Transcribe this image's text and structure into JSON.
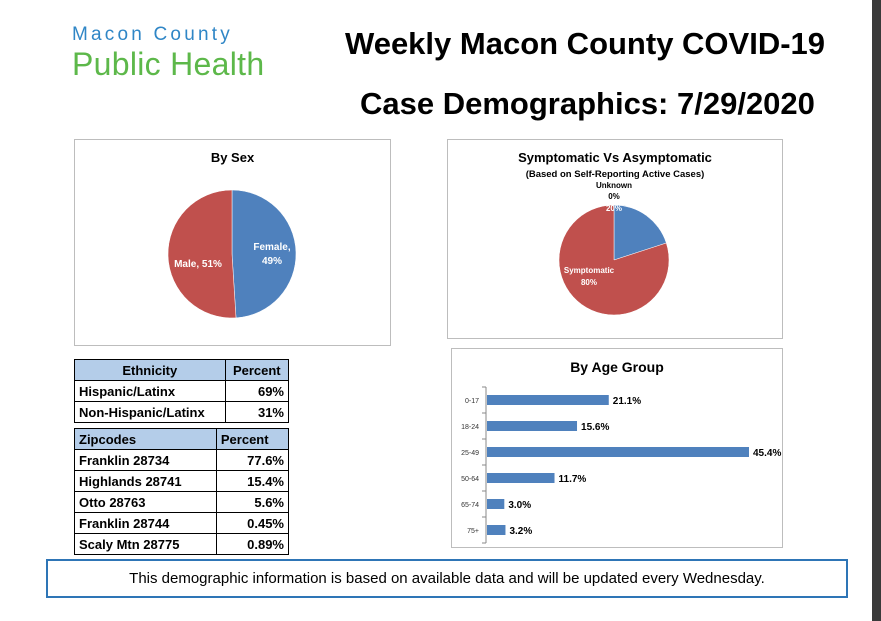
{
  "logo": {
    "line1": "Macon County",
    "line2": "Public Health"
  },
  "title": {
    "line1": "Weekly Macon County COVID-19",
    "line2": "Case Demographics: 7/29/2020"
  },
  "colors": {
    "blue": "#4f81bd",
    "red": "#c0504d",
    "header": "#b4cde9",
    "border": "#2e75b6"
  },
  "ethnicity_table": {
    "headers": [
      "Ethnicity",
      "Percent"
    ],
    "rows": [
      {
        "label": "Hispanic/Latinx",
        "value": "69%"
      },
      {
        "label": "Non-Hispanic/Latinx",
        "value": "31%"
      }
    ]
  },
  "zip_table": {
    "headers": [
      "Zipcodes",
      "Percent"
    ],
    "rows": [
      {
        "label": "Franklin 28734",
        "value": "77.6%"
      },
      {
        "label": "Highlands 28741",
        "value": "15.4%"
      },
      {
        "label": "Otto 28763",
        "value": "5.6%"
      },
      {
        "label": "Franklin 28744",
        "value": "0.45%"
      },
      {
        "label": "Scaly Mtn 28775",
        "value": "0.89%"
      }
    ]
  },
  "notice": "This demographic information is based on available data and will be updated every Wednesday.",
  "chart_data": [
    {
      "type": "pie",
      "title": "By Sex",
      "slices": [
        {
          "name": "Female",
          "value": 49,
          "label": "Female, 49%",
          "color": "#4f81bd"
        },
        {
          "name": "Male",
          "value": 51,
          "label": "Male, 51%",
          "color": "#c0504d"
        }
      ]
    },
    {
      "type": "pie",
      "title": "Symptomatic Vs Asymptomatic",
      "subtitle": "(Based on Self-Reporting Active Cases)",
      "slices": [
        {
          "name": "Unknown",
          "value": 0,
          "label_name": "Unknown",
          "label_value": "0%",
          "color": "#9bbb59"
        },
        {
          "name": "Asymptomatic",
          "value": 20,
          "label_value": "20%",
          "color": "#4f81bd"
        },
        {
          "name": "Symptomatic",
          "value": 80,
          "label_name": "Symptomatic",
          "label_value": "80%",
          "color": "#c0504d"
        }
      ]
    },
    {
      "type": "bar",
      "orientation": "horizontal",
      "title": "By Age Group",
      "categories": [
        "0-17",
        "18-24",
        "25-49",
        "50-64",
        "65-74",
        "75+"
      ],
      "values": [
        21.1,
        15.6,
        45.4,
        11.7,
        3.0,
        3.2
      ],
      "labels": [
        "21.1%",
        "15.6%",
        "45.4%",
        "11.7%",
        "3.0%",
        "3.2%"
      ],
      "xlim": [
        0,
        45.4
      ],
      "color": "#4f81bd"
    }
  ]
}
